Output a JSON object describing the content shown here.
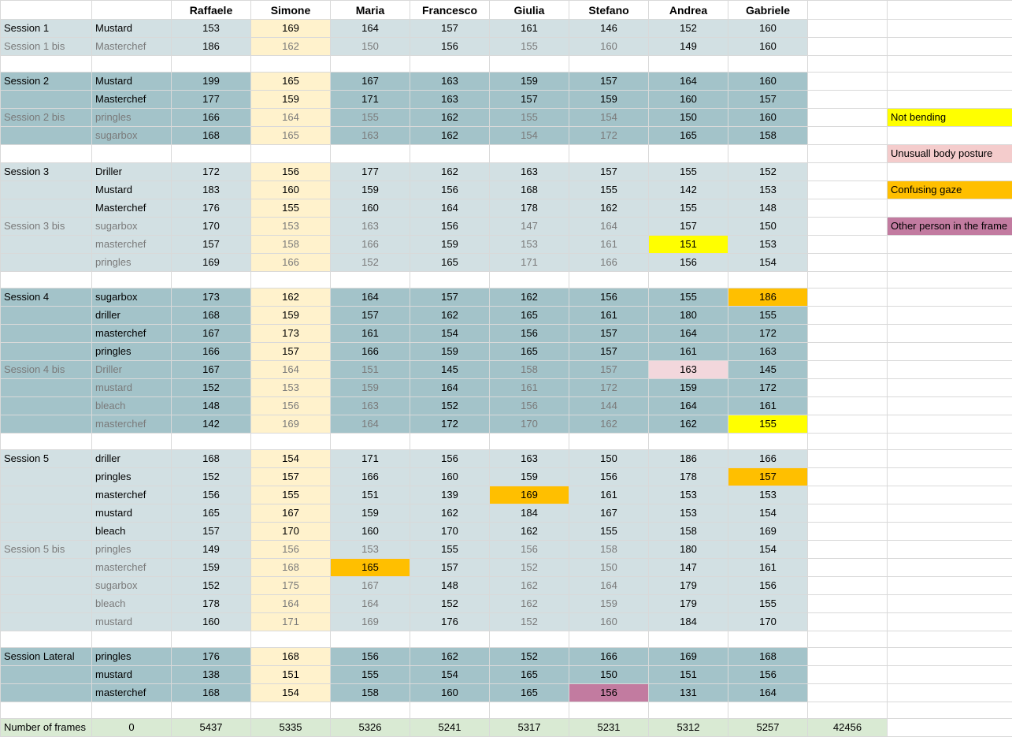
{
  "headers": [
    "Raffaele",
    "Simone",
    "Maria",
    "Francesco",
    "Giulia",
    "Stefano",
    "Andrea",
    "Gabriele"
  ],
  "legend": [
    {
      "label": "Not bending",
      "color": "#ffff00"
    },
    {
      "label": "Unusuall body posture",
      "color": "#f4cccc"
    },
    {
      "label": "Confusing gaze",
      "color": "#ffbf00"
    },
    {
      "label": "Other person in the frame",
      "color": "#c27ba0"
    }
  ],
  "rows": [
    {
      "session": "Session 1",
      "object": "Mustard",
      "values": [
        "153",
        "169",
        "164",
        "157",
        "161",
        "146",
        "152",
        "160"
      ],
      "bg": "l",
      "bis": false
    },
    {
      "session": "Session 1 bis",
      "object": "Masterchef",
      "values": [
        "186",
        "162",
        "150",
        "156",
        "155",
        "160",
        "149",
        "160"
      ],
      "bg": "l",
      "bis": true
    },
    {
      "blank": true
    },
    {
      "session": "Session 2",
      "object": "Mustard",
      "values": [
        "199",
        "165",
        "167",
        "163",
        "159",
        "157",
        "164",
        "160"
      ],
      "bg": "d",
      "bis": false
    },
    {
      "session": "",
      "object": "Masterchef",
      "values": [
        "177",
        "159",
        "171",
        "163",
        "157",
        "159",
        "160",
        "157"
      ],
      "bg": "d",
      "bis": false
    },
    {
      "session": "Session 2 bis",
      "object": "pringles",
      "values": [
        "166",
        "164",
        "155",
        "162",
        "155",
        "154",
        "150",
        "160"
      ],
      "bg": "d",
      "bis": true,
      "legend": 0
    },
    {
      "session": "",
      "object": "sugarbox",
      "values": [
        "168",
        "165",
        "163",
        "162",
        "154",
        "172",
        "165",
        "158"
      ],
      "bg": "d",
      "bis": true
    },
    {
      "blank": true,
      "legend": 1
    },
    {
      "session": "Session 3",
      "object": "Driller",
      "values": [
        "172",
        "156",
        "177",
        "162",
        "163",
        "157",
        "155",
        "152"
      ],
      "bg": "l",
      "bis": false
    },
    {
      "session": "",
      "object": "Mustard",
      "values": [
        "183",
        "160",
        "159",
        "156",
        "168",
        "155",
        "142",
        "153"
      ],
      "bg": "l",
      "bis": false,
      "legend": 2
    },
    {
      "session": "",
      "object": "Masterchef",
      "values": [
        "176",
        "155",
        "160",
        "164",
        "178",
        "162",
        "155",
        "148"
      ],
      "bg": "l",
      "bis": false
    },
    {
      "session": "Session 3 bis",
      "object": "sugarbox",
      "values": [
        "170",
        "153",
        "163",
        "156",
        "147",
        "164",
        "157",
        "150"
      ],
      "bg": "l",
      "bis": true,
      "legend": 3
    },
    {
      "session": "",
      "object": "masterchef",
      "values": [
        "157",
        "158",
        "166",
        "159",
        "153",
        "161",
        "151",
        "153"
      ],
      "bg": "l",
      "bis": true,
      "hl": {
        "6": "yellow"
      }
    },
    {
      "session": "",
      "object": "pringles",
      "values": [
        "169",
        "166",
        "152",
        "165",
        "171",
        "166",
        "156",
        "154"
      ],
      "bg": "l",
      "bis": true
    },
    {
      "blank": true
    },
    {
      "session": "Session 4",
      "object": "sugarbox",
      "values": [
        "173",
        "162",
        "164",
        "157",
        "162",
        "156",
        "155",
        "186"
      ],
      "bg": "d",
      "bis": false,
      "hl": {
        "7": "orange"
      }
    },
    {
      "session": "",
      "object": "driller",
      "values": [
        "168",
        "159",
        "157",
        "162",
        "165",
        "161",
        "180",
        "155"
      ],
      "bg": "d",
      "bis": false
    },
    {
      "session": "",
      "object": "masterchef",
      "values": [
        "167",
        "173",
        "161",
        "154",
        "156",
        "157",
        "164",
        "172"
      ],
      "bg": "d",
      "bis": false
    },
    {
      "session": "",
      "object": "pringles",
      "values": [
        "166",
        "157",
        "166",
        "159",
        "165",
        "157",
        "161",
        "163"
      ],
      "bg": "d",
      "bis": false
    },
    {
      "session": "Session 4 bis",
      "object": "Driller",
      "values": [
        "167",
        "164",
        "151",
        "145",
        "158",
        "157",
        "163",
        "145"
      ],
      "bg": "d",
      "bis": true,
      "hl": {
        "6": "pink"
      }
    },
    {
      "session": "",
      "object": "mustard",
      "values": [
        "152",
        "153",
        "159",
        "164",
        "161",
        "172",
        "159",
        "172"
      ],
      "bg": "d",
      "bis": true
    },
    {
      "session": "",
      "object": "bleach",
      "values": [
        "148",
        "156",
        "163",
        "152",
        "156",
        "144",
        "164",
        "161"
      ],
      "bg": "d",
      "bis": true
    },
    {
      "session": "",
      "object": "masterchef",
      "values": [
        "142",
        "169",
        "164",
        "172",
        "170",
        "162",
        "162",
        "155"
      ],
      "bg": "d",
      "bis": true,
      "hl": {
        "7": "yellow"
      }
    },
    {
      "blank": true
    },
    {
      "session": "Session 5",
      "object": "driller",
      "values": [
        "168",
        "154",
        "171",
        "156",
        "163",
        "150",
        "186",
        "166"
      ],
      "bg": "l",
      "bis": false
    },
    {
      "session": "",
      "object": "pringles",
      "values": [
        "152",
        "157",
        "166",
        "160",
        "159",
        "156",
        "178",
        "157"
      ],
      "bg": "l",
      "bis": false,
      "hl": {
        "7": "orange"
      }
    },
    {
      "session": "",
      "object": "masterchef",
      "values": [
        "156",
        "155",
        "151",
        "139",
        "169",
        "161",
        "153",
        "153"
      ],
      "bg": "l",
      "bis": false,
      "hl": {
        "4": "orange"
      }
    },
    {
      "session": "",
      "object": "mustard",
      "values": [
        "165",
        "167",
        "159",
        "162",
        "184",
        "167",
        "153",
        "154"
      ],
      "bg": "l",
      "bis": false
    },
    {
      "session": "",
      "object": "bleach",
      "values": [
        "157",
        "170",
        "160",
        "170",
        "162",
        "155",
        "158",
        "169"
      ],
      "bg": "l",
      "bis": false
    },
    {
      "session": "Session 5 bis",
      "object": "pringles",
      "values": [
        "149",
        "156",
        "153",
        "155",
        "156",
        "158",
        "180",
        "154"
      ],
      "bg": "l",
      "bis": true
    },
    {
      "session": "",
      "object": "masterchef",
      "values": [
        "159",
        "168",
        "165",
        "157",
        "152",
        "150",
        "147",
        "161"
      ],
      "bg": "l",
      "bis": true,
      "hl": {
        "2": "orange"
      }
    },
    {
      "session": "",
      "object": "sugarbox",
      "values": [
        "152",
        "175",
        "167",
        "148",
        "162",
        "164",
        "179",
        "156"
      ],
      "bg": "l",
      "bis": true
    },
    {
      "session": "",
      "object": "bleach",
      "values": [
        "178",
        "164",
        "164",
        "152",
        "162",
        "159",
        "179",
        "155"
      ],
      "bg": "l",
      "bis": true
    },
    {
      "session": "",
      "object": "mustard",
      "values": [
        "160",
        "171",
        "169",
        "176",
        "152",
        "160",
        "184",
        "170"
      ],
      "bg": "l",
      "bis": true
    },
    {
      "blank": true
    },
    {
      "session": "Session Lateral",
      "object": "pringles",
      "values": [
        "176",
        "168",
        "156",
        "162",
        "152",
        "166",
        "169",
        "168"
      ],
      "bg": "d",
      "bis": false
    },
    {
      "session": "",
      "object": "mustard",
      "values": [
        "138",
        "151",
        "155",
        "154",
        "165",
        "150",
        "151",
        "156"
      ],
      "bg": "d",
      "bis": false
    },
    {
      "session": "",
      "object": "masterchef",
      "values": [
        "168",
        "154",
        "158",
        "160",
        "165",
        "156",
        "131",
        "164"
      ],
      "bg": "d",
      "bis": false,
      "hl": {
        "5": "purple"
      }
    },
    {
      "blank": true
    }
  ],
  "totals": {
    "label": "Number of frames",
    "first": "0",
    "values": [
      "5437",
      "5335",
      "5326",
      "5241",
      "5317",
      "5231",
      "5312",
      "5257"
    ],
    "grand_total": "42456"
  }
}
